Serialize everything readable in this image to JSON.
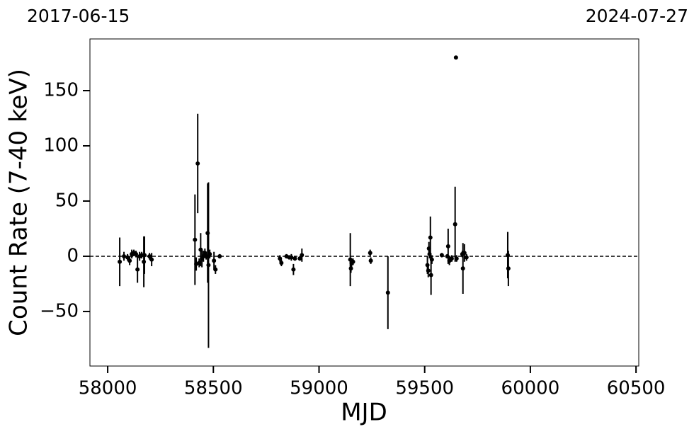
{
  "chart_data": {
    "type": "errorbar_scatter",
    "xlabel": "MJD",
    "ylabel": "Count Rate (7-40 keV)",
    "annotations": [
      "2017-06-15",
      "2024-07-27"
    ],
    "xlim": [
      57916,
      60513
    ],
    "ylim": [
      -99.4,
      196.8
    ],
    "xticks": [
      58000,
      58500,
      59000,
      59500,
      60000,
      60500
    ],
    "yticks": [
      {
        "value": -50,
        "label": "−50"
      },
      0,
      50,
      100,
      150
    ],
    "hline": 0,
    "series": [
      {
        "color": "#000000",
        "x": [
          58057,
          58077,
          58094,
          58104,
          58114,
          58124,
          58134,
          58141,
          58151,
          58161,
          58171,
          58174,
          58198,
          58208,
          58413,
          58419,
          58426,
          58433,
          58440,
          58446,
          58453,
          58460,
          58466,
          58473,
          58477,
          58483,
          58503,
          58510,
          58530,
          58815,
          58822,
          58846,
          58859,
          58869,
          58879,
          58886,
          58909,
          58919,
          59148,
          59151,
          59154,
          59161,
          59242,
          59245,
          59326,
          59513,
          59517,
          59520,
          59523,
          59527,
          59530,
          59534,
          59581,
          59607,
          59611,
          59617,
          59628,
          59644,
          59648,
          59651,
          59678,
          59681,
          59688,
          59698,
          59893,
          59896
        ],
        "values": [
          -5,
          0,
          -1,
          -4,
          2,
          3,
          2,
          -12,
          0,
          1,
          -5,
          1,
          0,
          -3,
          15,
          -7,
          84,
          -6,
          6,
          -2,
          0,
          3,
          0,
          21,
          -8,
          2,
          -4,
          -12,
          0,
          -2,
          -6,
          0,
          -1,
          -1,
          -12,
          -2,
          -2,
          1,
          -3,
          -11,
          -6,
          -5,
          3,
          -4,
          -33,
          -8,
          -13,
          7,
          2,
          17,
          -17,
          -3,
          1,
          0,
          9,
          -4,
          -2,
          29,
          180,
          -2,
          2,
          -11,
          3,
          -1,
          1,
          -11
        ],
        "errors": [
          22,
          4,
          3,
          4,
          4,
          3,
          3,
          12,
          4,
          3,
          23,
          17,
          3,
          6,
          41,
          6,
          45,
          4,
          15,
          8,
          5,
          4,
          3,
          45,
          75,
          4,
          8,
          4,
          2,
          3,
          3,
          2,
          2,
          3,
          5,
          2,
          2,
          6,
          24,
          4,
          4,
          3,
          3,
          3,
          33,
          8,
          6,
          6,
          4,
          19,
          18,
          4,
          2,
          2,
          16,
          4,
          3,
          34,
          1,
          3,
          3,
          23,
          8,
          3,
          21,
          16
        ]
      }
    ]
  }
}
